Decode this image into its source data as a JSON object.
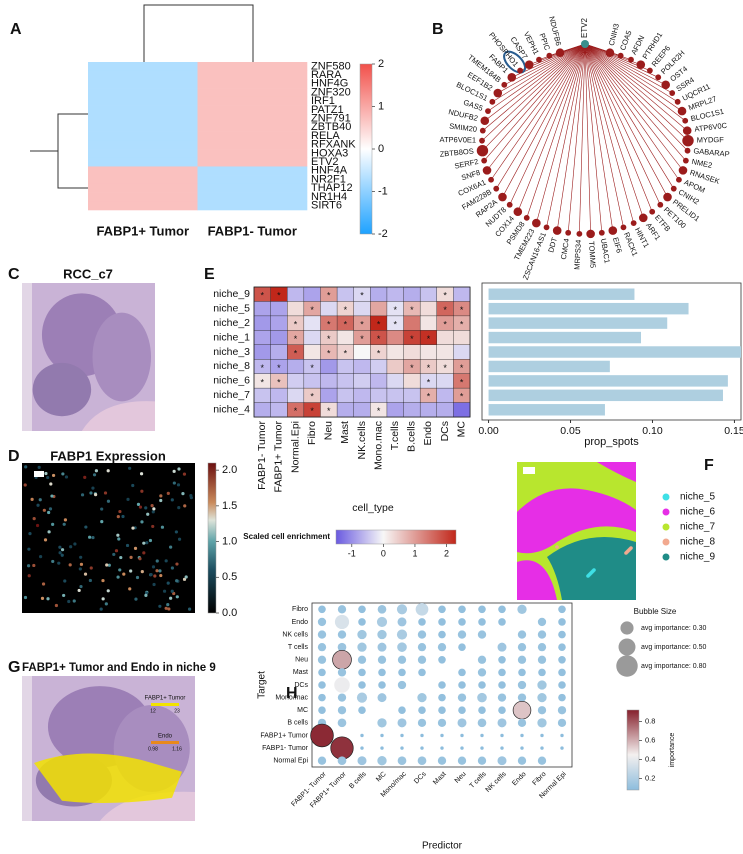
{
  "chart_data": [
    {
      "panel": "A",
      "type": "heatmap",
      "columns": [
        "FABP1+ Tumor",
        "FABP1- Tumor"
      ],
      "rows": [
        "ZNF580",
        "RARA",
        "HNF4G",
        "ZNF320",
        "IRF1",
        "PATZ1",
        "ZNF791",
        "ZBTB40",
        "RELA",
        "RFXANK",
        "HOXA3",
        "ETV2",
        "HNF4A",
        "NR2F1",
        "THAP12",
        "NR1H4",
        "SIRT6"
      ],
      "values": [
        [
          -0.71,
          0.71
        ],
        [
          -0.71,
          0.71
        ],
        [
          -0.71,
          0.71
        ],
        [
          -0.71,
          0.71
        ],
        [
          -0.71,
          0.71
        ],
        [
          -0.71,
          0.71
        ],
        [
          -0.71,
          0.71
        ],
        [
          -0.71,
          0.71
        ],
        [
          -0.71,
          0.71
        ],
        [
          -0.71,
          0.71
        ],
        [
          -0.71,
          0.71
        ],
        [
          -0.71,
          0.71
        ],
        [
          0.71,
          -0.71
        ],
        [
          0.71,
          -0.71
        ],
        [
          0.71,
          -0.71
        ],
        [
          0.71,
          -0.71
        ],
        [
          0.71,
          -0.71
        ]
      ],
      "clim": [
        -2,
        2
      ],
      "cticks": [
        2,
        1,
        0,
        -1,
        -2
      ],
      "colors": [
        [
          -2,
          "#1ea2ff"
        ],
        [
          0,
          "#ffffff"
        ],
        [
          2,
          "#f2514b"
        ]
      ]
    },
    {
      "panel": "B",
      "type": "network",
      "hub": "ETV2",
      "hub_color": "#3a8f8c",
      "color": "#9b1c1c",
      "nodes": [
        "CNIH3",
        "COA5",
        "AFDN",
        "PTRHD1",
        "REEP6",
        "POLR2H",
        "OST4",
        "SSR4",
        "UQCR11",
        "MRPL27",
        "BLOC1S1",
        "ATP6V0C",
        "MYDGF",
        "GABARAP",
        "NME2",
        "RNASEK",
        "APOM",
        "CNIH2",
        "PRELID1",
        "PET100",
        "ETFB",
        "ARF1",
        "HINT1",
        "RACK1",
        "EIF6",
        "UBAC1",
        "TOMM5",
        "MRPS34",
        "CMC4",
        "DDT",
        "ZSCAN16-AS1",
        "TMEM223",
        "PSMD8",
        "COX14",
        "NUDT8",
        "RAP2A",
        "FAM228B",
        "COX6A1",
        "SNF8",
        "SERF2",
        "ZBTB8OS",
        "ATP6V0E1",
        "SMIM20",
        "NDUFB2",
        "GAS5",
        "BLOC1S1",
        "EEF1B2",
        "TMEM184B",
        "FABP1",
        "PHOSPHO1",
        "CASP7",
        "VEPH1",
        "PPIC",
        "NDUFB6"
      ],
      "weights": [
        2,
        1,
        1,
        2,
        1,
        1,
        2,
        1,
        1,
        2,
        1,
        2,
        3,
        1,
        1,
        2,
        1,
        1,
        2,
        1,
        1,
        2,
        1,
        1,
        2,
        1,
        2,
        1,
        1,
        2,
        1,
        2,
        1,
        2,
        1,
        2,
        1,
        1,
        2,
        1,
        3,
        1,
        1,
        2,
        1,
        1,
        2,
        1,
        2,
        1,
        2,
        1,
        1,
        2
      ]
    },
    {
      "panel": "C",
      "type": "image",
      "title": "RCC_c7"
    },
    {
      "panel": "D",
      "type": "spatial",
      "title": "FABP1 Expression",
      "clim": [
        0,
        2.1
      ],
      "cticks": [
        {
          "value": 0,
          "label": "0.0"
        },
        0.5,
        {
          "value": 1,
          "label": "1.0"
        },
        1.5,
        {
          "value": 2,
          "label": "2.0"
        }
      ],
      "colors": [
        [
          0,
          "#000000"
        ],
        [
          0.6,
          "#1c4d5f"
        ],
        [
          1,
          "#5ea3a8"
        ],
        [
          1.3,
          "#dde3d9"
        ],
        [
          1.55,
          "#c98a5b"
        ],
        [
          2.1,
          "#6b0f0f"
        ]
      ]
    },
    {
      "panel": "E",
      "type": "heatmap",
      "columns": [
        "FABP1- Tumor",
        "FABP1+ Tumor",
        "Normal.Epi",
        "Fibro",
        "Neu",
        "Mast",
        "NK.cells",
        "Mono.mac",
        "T.cells",
        "B.cells",
        "Endo",
        "DCs",
        "MC"
      ],
      "rows": [
        "niche_9",
        "niche_5",
        "niche_2",
        "niche_1",
        "niche_3",
        "niche_8",
        "niche_6",
        "niche_7",
        "niche_4"
      ],
      "values": [
        [
          1.8,
          2.3,
          -0.6,
          -0.8,
          1.0,
          -0.5,
          -0.3,
          -0.7,
          -0.6,
          -0.7,
          -0.5,
          0.3,
          -0.6
        ],
        [
          -0.8,
          -0.8,
          0.3,
          0.9,
          -0.3,
          0.4,
          -0.3,
          0.9,
          -0.2,
          0.7,
          0.3,
          1.6,
          1.2
        ],
        [
          -0.9,
          -0.8,
          0.5,
          -0.2,
          1.4,
          1.6,
          1.0,
          2.3,
          -0.2,
          1.4,
          0.2,
          1.0,
          0.8
        ],
        [
          -0.8,
          -0.9,
          0.9,
          -0.3,
          0.5,
          0.2,
          1.0,
          1.8,
          1.2,
          2.0,
          2.2,
          0.3,
          0.3
        ],
        [
          -0.9,
          -0.7,
          1.7,
          0.2,
          0.7,
          0.4,
          0.0,
          0.4,
          0.2,
          0.3,
          0.2,
          0.2,
          -0.3
        ],
        [
          -0.6,
          -0.8,
          -0.7,
          -0.5,
          -0.9,
          -0.5,
          -0.6,
          -0.4,
          0.5,
          0.9,
          0.5,
          0.3,
          1.0
        ],
        [
          0.2,
          0.6,
          -0.4,
          -0.5,
          -0.6,
          -0.5,
          -0.4,
          -0.6,
          -0.3,
          0.3,
          -0.3,
          -0.3,
          1.4
        ],
        [
          -0.5,
          -0.6,
          -0.3,
          0.5,
          -0.8,
          -0.5,
          -0.6,
          -0.5,
          -0.5,
          -0.5,
          0.8,
          -0.6,
          1.0
        ],
        [
          -0.7,
          -0.6,
          1.5,
          2.0,
          0.3,
          -0.7,
          -0.7,
          0.2,
          -0.8,
          -0.7,
          -0.7,
          -0.7,
          -1.3
        ]
      ],
      "annotations": [
        [
          "*",
          "*",
          null,
          null,
          "*",
          null,
          "*",
          null,
          null,
          null,
          null,
          "*",
          null
        ],
        [
          null,
          null,
          null,
          "*",
          null,
          "*",
          null,
          null,
          "*",
          "*",
          null,
          "*",
          "*"
        ],
        [
          null,
          null,
          "*",
          null,
          "*",
          "*",
          "*",
          "*",
          "*",
          null,
          null,
          "*",
          "*"
        ],
        [
          null,
          null,
          "*",
          null,
          "*",
          null,
          "*",
          "*",
          null,
          "*",
          "*",
          null,
          null
        ],
        [
          null,
          null,
          "*",
          null,
          "*",
          "*",
          null,
          "*",
          null,
          null,
          null,
          null,
          null
        ],
        [
          "*",
          "*",
          null,
          "*",
          null,
          null,
          null,
          null,
          null,
          "*",
          "*",
          "*",
          "*"
        ],
        [
          "*",
          "*",
          null,
          null,
          null,
          null,
          null,
          null,
          null,
          null,
          "*",
          null,
          "*"
        ],
        [
          null,
          null,
          null,
          "*",
          null,
          null,
          null,
          null,
          null,
          null,
          "*",
          null,
          "*"
        ],
        [
          null,
          null,
          "*",
          "*",
          "*",
          null,
          null,
          "*",
          null,
          null,
          null,
          null,
          null
        ]
      ],
      "xlabel": "cell_type",
      "colorbar_label": "Scaled cell enrichment",
      "clim": [
        -1.5,
        2.3
      ],
      "cticks": [
        -1,
        0,
        1,
        2
      ],
      "colors": [
        [
          -1.5,
          "#6a5ae0"
        ],
        [
          0,
          "#f7f7f7"
        ],
        [
          2.3,
          "#c1271a"
        ]
      ]
    },
    {
      "type": "bar",
      "values": [
        0.089,
        0.122,
        0.109,
        0.093,
        0.154,
        0.074,
        0.146,
        0.143,
        0.071
      ],
      "color": "#aecfe0",
      "xlim": [
        -0.004,
        0.154
      ],
      "xticks": [
        {
          "value": 0,
          "label": "0.00"
        },
        0.05,
        {
          "value": 0.1,
          "label": "0.10"
        },
        0.15
      ],
      "xlabel": "prop_spots"
    },
    {
      "panel": "F",
      "type": "clusters",
      "series": [
        {
          "name": "niche_5",
          "color": "#3fe0e6"
        },
        {
          "name": "niche_6",
          "color": "#e62ee6"
        },
        {
          "name": "niche_7",
          "color": "#b8e62e"
        },
        {
          "name": "niche_8",
          "color": "#f2a98f"
        },
        {
          "name": "niche_9",
          "color": "#1f8c87"
        }
      ]
    },
    {
      "panel": "G",
      "type": "image",
      "title": "FABP1+ Tumor and Endo in niche 9",
      "legend": [
        {
          "name": "FABP1+ Tumor",
          "color": "#f2e200",
          "ticks": [
            12,
            23
          ]
        },
        {
          "name": "Endo",
          "color": "#e8891c",
          "ticks": [
            0.98,
            1.16
          ]
        }
      ]
    },
    {
      "panel": "H",
      "type": "bubble",
      "rows": [
        "Fibro",
        "Endo",
        "NK cells",
        "T cells",
        "Neu",
        "Mast",
        "DCs",
        "Mono/mac",
        "MC",
        "B cells",
        "FABP1+ Tumor",
        "FABP1- Tumor",
        "Normal Epi"
      ],
      "columns": [
        "FABP1- Tumor",
        "FABP1+ Tumor",
        "B cells",
        "MC",
        "Mono/mac",
        "DCs",
        "Mast",
        "Neu",
        "T cells",
        "NK cells",
        "Endo",
        "Fibro",
        "Normal Epi"
      ],
      "values": [
        [
          0.1,
          0.12,
          0.1,
          0.13,
          0.18,
          0.28,
          0.1,
          0.1,
          0.1,
          0.1,
          0.15,
          null,
          0.1
        ],
        [
          0.12,
          0.35,
          0.1,
          0.18,
          0.14,
          0.1,
          0.1,
          0.1,
          0.1,
          0.1,
          null,
          0.12,
          0.1
        ],
        [
          0.12,
          0.12,
          0.15,
          0.15,
          0.18,
          0.12,
          0.1,
          0.12,
          0.12,
          null,
          0.12,
          0.12,
          0.1
        ],
        [
          0.12,
          0.13,
          0.15,
          0.14,
          0.16,
          0.12,
          0.12,
          0.1,
          null,
          0.14,
          0.12,
          0.12,
          0.1
        ],
        [
          0.12,
          0.62,
          0.12,
          0.12,
          0.12,
          0.12,
          0.1,
          null,
          0.12,
          0.1,
          0.12,
          0.12,
          0.1
        ],
        [
          0.1,
          0.12,
          0.1,
          0.1,
          0.1,
          0.1,
          null,
          0.1,
          0.12,
          0.1,
          0.1,
          0.1,
          0.1
        ],
        [
          0.1,
          0.42,
          0.1,
          0.1,
          0.12,
          null,
          0.1,
          0.1,
          0.1,
          0.1,
          0.12,
          0.15,
          0.1
        ],
        [
          0.1,
          0.12,
          0.18,
          0.14,
          null,
          0.15,
          0.1,
          0.12,
          0.16,
          0.12,
          0.12,
          0.15,
          0.1
        ],
        [
          0.1,
          0.12,
          0.1,
          null,
          0.1,
          0.1,
          0.1,
          0.1,
          0.1,
          0.1,
          0.55,
          0.12,
          0.12
        ],
        [
          0.12,
          0.13,
          null,
          0.15,
          0.14,
          0.12,
          0.12,
          0.14,
          0.13,
          0.14,
          0.12,
          0.15,
          0.12
        ],
        [
          0.9,
          null,
          0.02,
          0.02,
          0.02,
          0.02,
          0.02,
          0.02,
          0.02,
          0.02,
          0.02,
          0.02,
          0.02
        ],
        [
          null,
          0.88,
          0.02,
          0.02,
          0.02,
          0.02,
          0.02,
          0.02,
          0.02,
          0.02,
          0.02,
          0.02,
          0.02
        ],
        [
          0.12,
          0.13,
          0.14,
          0.15,
          0.13,
          0.13,
          0.12,
          0.12,
          0.12,
          0.14,
          0.12,
          0.12,
          null
        ]
      ],
      "xlabel": "Predictor",
      "ylabel": "Target",
      "size_title": "Bubble Size",
      "size_legend": [
        {
          "value": 0.3,
          "label": "avg importance: 0.30"
        },
        {
          "value": 0.5,
          "label": "avg importance: 0.50"
        },
        {
          "value": 0.8,
          "label": "avg importance: 0.80"
        }
      ],
      "colorbar_label": "importance",
      "clim": [
        0.08,
        0.92
      ],
      "cticks": [
        0.2,
        0.4,
        0.6,
        0.8
      ],
      "colors": [
        [
          0.08,
          "#8dbddd"
        ],
        [
          0.45,
          "#f4f0ef"
        ],
        [
          0.92,
          "#86202c"
        ]
      ]
    }
  ]
}
